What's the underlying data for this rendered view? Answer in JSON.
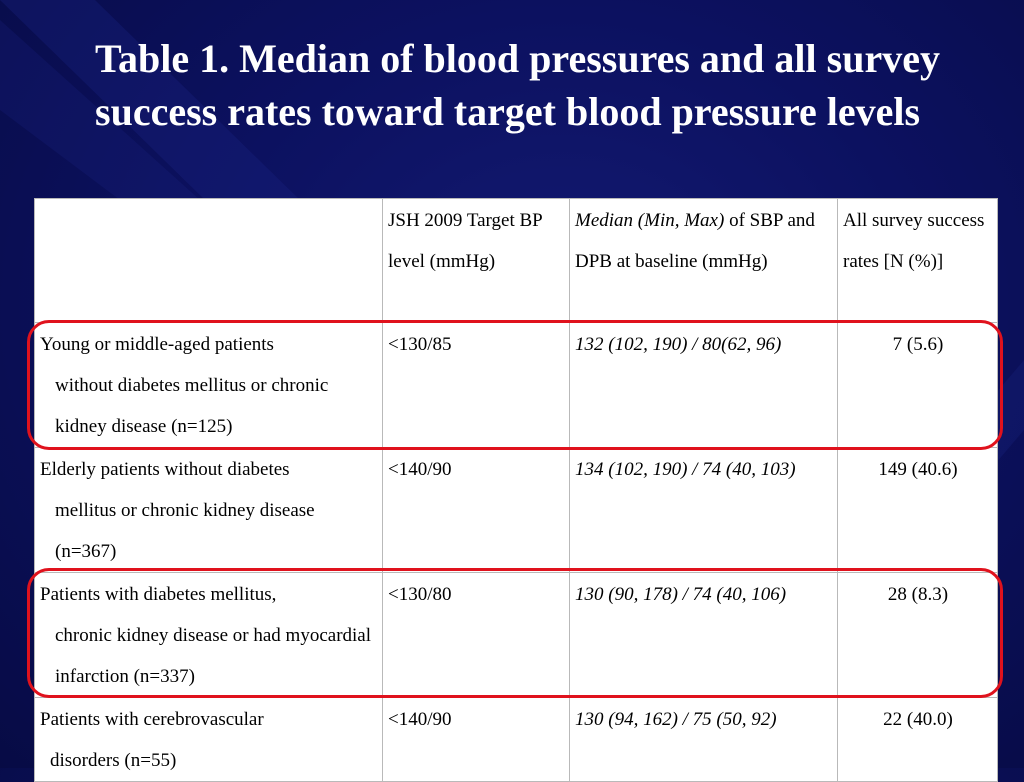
{
  "slide": {
    "title": "Table 1. Median of blood pressures and all survey success rates toward target blood pressure levels"
  },
  "table": {
    "header": {
      "col1": "",
      "col2": "JSH 2009 Target BP level (mmHg)",
      "col3_italic": "Median (Min, Max)",
      "col3_rest": " of SBP and DPB at baseline (mmHg)",
      "col4": "All survey success rates [N (%)]"
    },
    "rows": [
      {
        "label_first": "Young or middle-aged patients",
        "label_rest": "without diabetes mellitus or chronic kidney disease (n=125)",
        "target": "<130/85",
        "median": "132 (102, 190) / 80(62, 96)",
        "success": "7  (5.6)"
      },
      {
        "label_first": "Elderly patients without diabetes",
        "label_rest": "mellitus or chronic kidney disease (n=367)",
        "target": "<140/90",
        "median": "134 (102, 190) / 74 (40, 103)",
        "success": "149  (40.6)"
      },
      {
        "label_first": "Patients with diabetes mellitus,",
        "label_rest": "chronic kidney disease or had myocardial infarction (n=337)",
        "target": "<130/80",
        "median": "130 (90, 178) / 74 (40, 106)",
        "success": "28  (8.3)"
      },
      {
        "label_first": "Patients with cerebrovascular",
        "label_rest": "disorders (n=55)",
        "target": "<140/90",
        "median": "130 (94, 162) / 75 (50, 92)",
        "success": "22  (40.0)"
      }
    ]
  },
  "annotations": {
    "highlight_color": "#e0121d",
    "highlighted_rows": [
      "Young or middle-aged patients",
      "Patients with diabetes mellitus,"
    ]
  }
}
